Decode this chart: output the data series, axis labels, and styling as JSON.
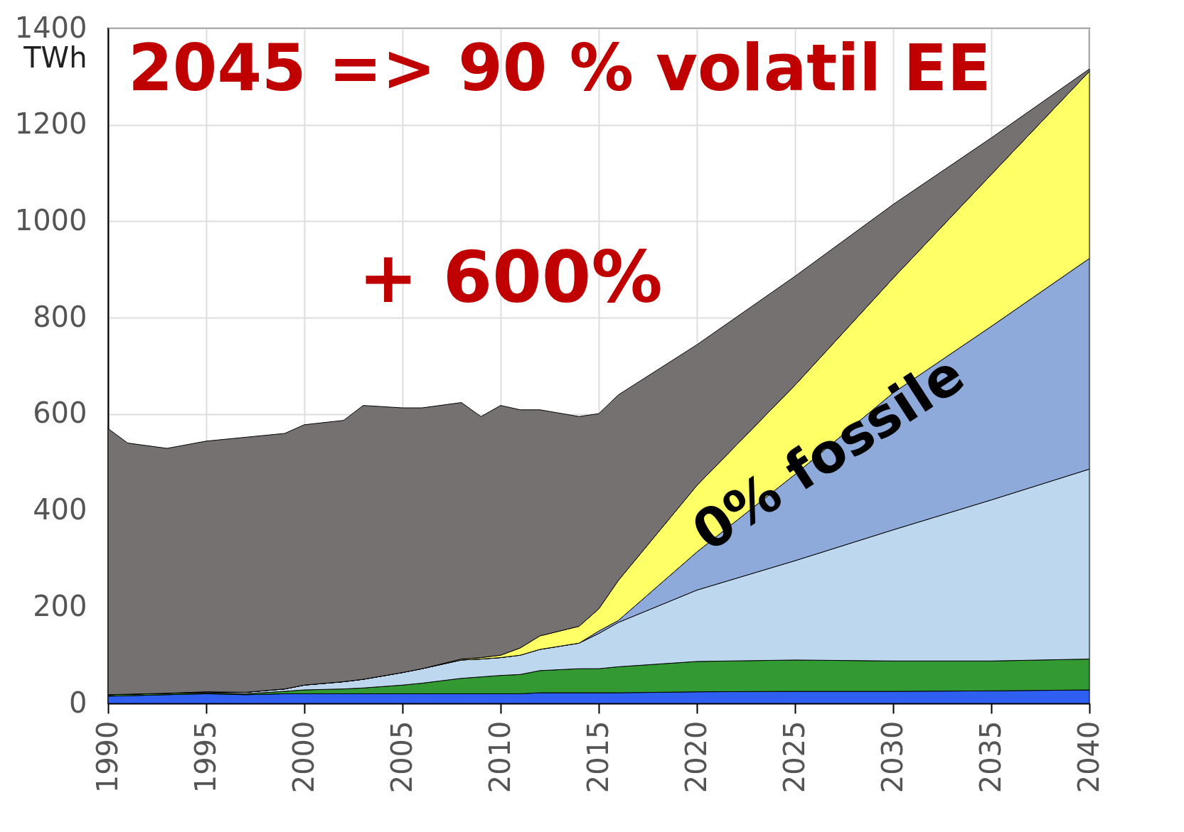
{
  "chart_data": {
    "type": "area",
    "stacked": true,
    "ylabel": "TWh",
    "x": [
      1990,
      1991,
      1993,
      1995,
      1997,
      1999,
      2000,
      2002,
      2003,
      2005,
      2006,
      2008,
      2009,
      2010,
      2011,
      2012,
      2014,
      2015,
      2016,
      2020,
      2025,
      2030,
      2035,
      2040
    ],
    "series": [
      {
        "color": "#2e5ff0",
        "values": [
          15,
          16,
          18,
          20,
          18,
          20,
          20,
          20,
          20,
          20,
          20,
          20,
          20,
          20,
          20,
          22,
          22,
          22,
          22,
          24,
          25,
          25,
          26,
          28
        ]
      },
      {
        "color": "#339933",
        "values": [
          3,
          3,
          3,
          2,
          2,
          5,
          8,
          10,
          12,
          18,
          22,
          32,
          35,
          38,
          40,
          46,
          50,
          50,
          54,
          63,
          65,
          63,
          62,
          64
        ]
      },
      {
        "color": "#bdd7ee",
        "values": [
          0,
          0,
          0,
          2,
          3,
          5,
          10,
          15,
          18,
          26,
          30,
          38,
          37,
          37,
          40,
          44,
          53,
          73,
          92,
          148,
          206,
          272,
          334,
          394
        ]
      },
      {
        "color": "#8eaadb",
        "values": [
          0,
          0,
          0,
          0,
          0,
          0,
          0,
          0,
          0,
          0,
          0,
          0,
          0,
          0,
          0,
          0,
          0,
          5,
          4,
          79,
          179,
          284,
          360,
          437
        ]
      },
      {
        "color": "#ffff66",
        "values": [
          0,
          0,
          0,
          0,
          0,
          0,
          0,
          0,
          0,
          0,
          0,
          2,
          3,
          5,
          15,
          28,
          35,
          46,
          83,
          138,
          185,
          238,
          315,
          388
        ]
      },
      {
        "color": "#767171",
        "values": [
          552,
          521,
          508,
          520,
          529,
          530,
          540,
          542,
          568,
          549,
          541,
          532,
          500,
          518,
          494,
          469,
          435,
          405,
          385,
          292,
          226,
          153,
          76,
          5
        ]
      }
    ],
    "xlim": [
      1990,
      2040
    ],
    "xticks": [
      1990,
      1995,
      2000,
      2005,
      2010,
      2015,
      2020,
      2025,
      2030,
      2035,
      2040
    ],
    "ylim": [
      0,
      1400
    ],
    "yticks": [
      0,
      200,
      400,
      600,
      800,
      {
        "value": 1000,
        "label": "1000"
      },
      {
        "value": 1200,
        "label": "1200"
      },
      {
        "value": 1400,
        "label": "1400"
      }
    ],
    "grid": true,
    "legend": false,
    "annotations": [
      "2045 => 90 % volatil EE",
      "+ 600%",
      "0% fossile"
    ]
  }
}
